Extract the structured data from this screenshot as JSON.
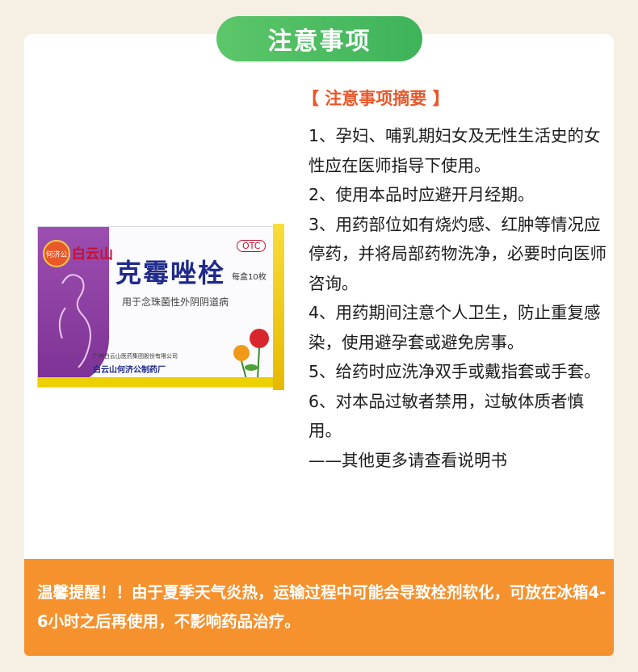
{
  "header": {
    "title": "注意事项"
  },
  "summary": {
    "heading": "【 注意事项摘要 】",
    "items": [
      "1、孕妇、哺乳期妇女及无性生活史的女性应在医师指导下使用。",
      "2、使用本品时应避开月经期。",
      "3、用药部位如有烧灼感、红肿等情况应停药，并将局部药物洗净，必要时向医师咨询。",
      "4、用药期间注意个人卫生，防止重复感染，使用避孕套或避免房事。",
      "5、给药时应洗净双手或戴指套或手套。",
      "6、对本品过敏者禁用，过敏体质者慎用。"
    ],
    "tail": "——其他更多请查看说明书"
  },
  "product": {
    "brand": "白云山",
    "name": "克霉唑栓",
    "otc": "OTC",
    "count": "每盒10枚",
    "usage": "用于念珠菌性外阴阴道病",
    "maker_line1": "广州白云山医药集团股份有限公司",
    "maker_line2": "白云山何济公制药厂",
    "seal_text": "何济公"
  },
  "tip": {
    "text": "温馨提醒！！由于夏季天气炎热，运输过程中可能会导致栓剂软化，可放在冰箱4-6小时之后再使用，不影响药品治疗。"
  },
  "colors": {
    "accent_green": "#3eb35a",
    "accent_orange": "#f5922e",
    "heading_red": "#e8582a"
  }
}
